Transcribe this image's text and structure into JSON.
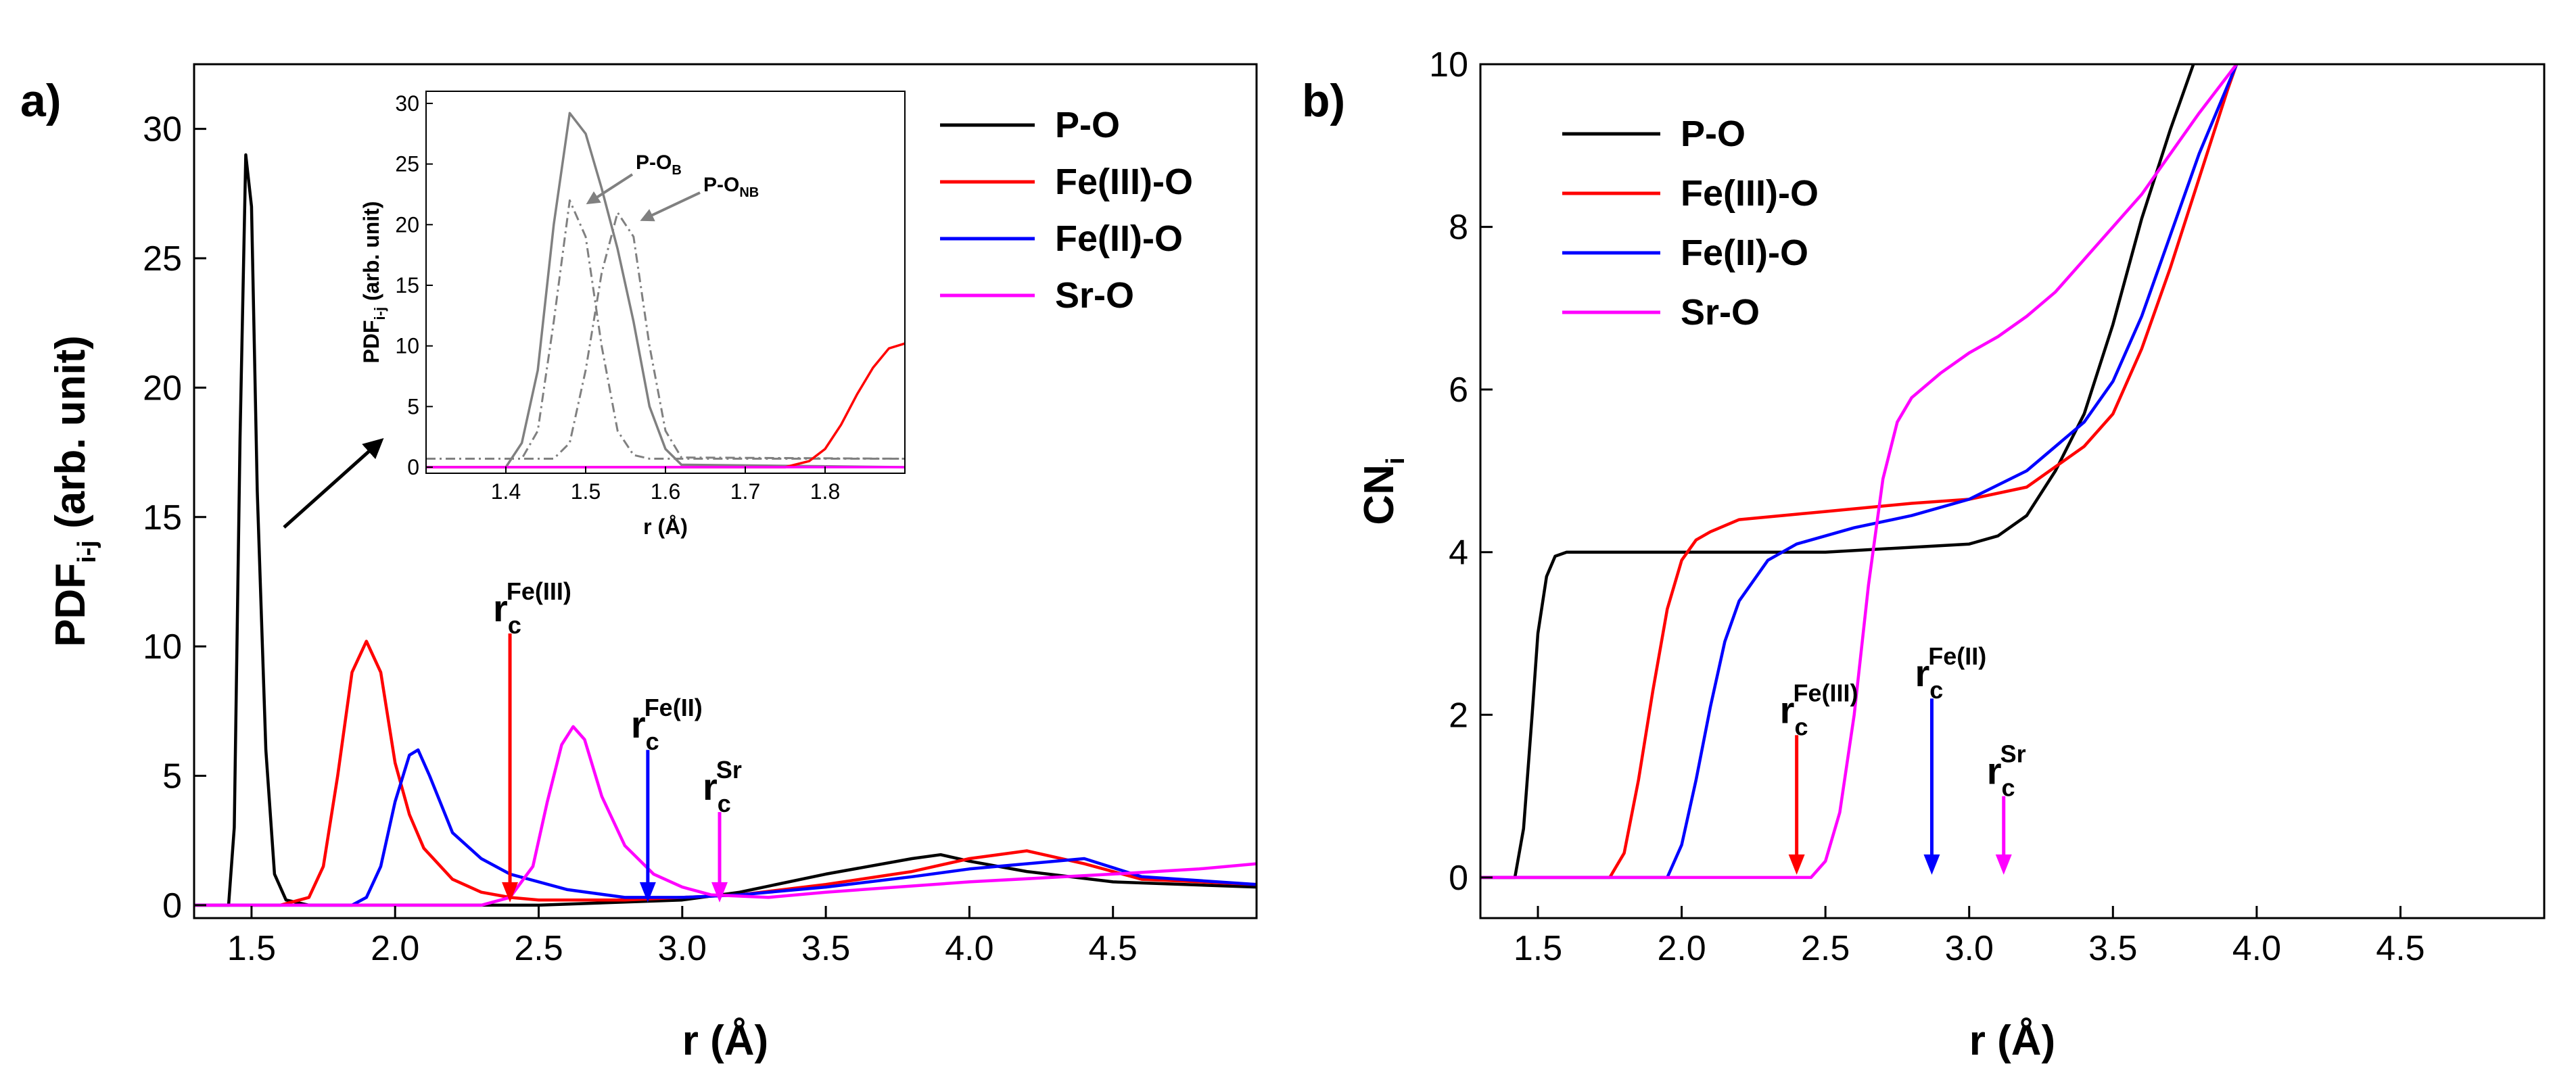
{
  "colors": {
    "P-O": "#000000",
    "Fe(III)-O": "#ff0000",
    "Fe(II)-O": "#0000ff",
    "Sr-O": "#ff00ff",
    "inset_total": "#808080",
    "arrow": "#000000"
  },
  "chart_data": [
    {
      "id": "a",
      "type": "line",
      "panel_label": "a)",
      "xlabel": "r (Å)",
      "ylabel": "PDF",
      "ylabel_sub": "i-j",
      "ylabel_rest": "(arb. unit)",
      "xlim": [
        1.3,
        5.0
      ],
      "ylim": [
        -0.5,
        32.5
      ],
      "xticks": [
        1.5,
        2.0,
        2.5,
        3.0,
        3.5,
        4.0,
        4.5
      ],
      "xtick_labels": [
        "1.5",
        "2.0",
        "2.5",
        "3.0",
        "3.5",
        "4.0",
        "4.5"
      ],
      "yticks": [
        0,
        5,
        10,
        15,
        20,
        25,
        30
      ],
      "ytick_labels": [
        "0",
        "5",
        "10",
        "15",
        "20",
        "25",
        "30"
      ],
      "legend": {
        "position": "top-right",
        "entries": [
          {
            "label": "P-O",
            "series": "P-O"
          },
          {
            "label": "Fe(III)-O",
            "series": "Fe(III)-O"
          },
          {
            "label": "Fe(II)-O",
            "series": "Fe(II)-O"
          },
          {
            "label": "Sr-O",
            "series": "Sr-O"
          }
        ]
      },
      "series": [
        {
          "name": "P-O",
          "x": [
            1.3,
            1.42,
            1.44,
            1.46,
            1.48,
            1.5,
            1.52,
            1.55,
            1.58,
            1.62,
            1.7,
            2.0,
            2.5,
            3.0,
            3.2,
            3.5,
            3.8,
            3.9,
            4.0,
            4.2,
            4.5,
            5.0
          ],
          "y": [
            0,
            0,
            3,
            18,
            29,
            27,
            16,
            6,
            1.2,
            0.2,
            0,
            0,
            0,
            0.2,
            0.5,
            1.2,
            1.8,
            1.95,
            1.7,
            1.3,
            0.9,
            0.7
          ]
        },
        {
          "name": "Fe(III)-O",
          "x": [
            1.3,
            1.6,
            1.7,
            1.75,
            1.8,
            1.85,
            1.9,
            1.95,
            2.0,
            2.05,
            2.1,
            2.2,
            2.3,
            2.4,
            2.5,
            2.8,
            3.0,
            3.2,
            3.5,
            3.8,
            4.0,
            4.2,
            4.4,
            4.6,
            5.0
          ],
          "y": [
            0,
            0,
            0.3,
            1.5,
            5,
            9,
            10.2,
            9,
            5.5,
            3.5,
            2.2,
            1,
            0.5,
            0.3,
            0.2,
            0.2,
            0.3,
            0.4,
            0.8,
            1.3,
            1.8,
            2.1,
            1.6,
            1.0,
            0.8
          ]
        },
        {
          "name": "Fe(II)-O",
          "x": [
            1.3,
            1.85,
            1.9,
            1.95,
            2.0,
            2.05,
            2.08,
            2.12,
            2.2,
            2.3,
            2.4,
            2.6,
            2.8,
            3.0,
            3.2,
            3.5,
            3.8,
            4.0,
            4.2,
            4.4,
            4.6,
            5.0
          ],
          "y": [
            0,
            0,
            0.3,
            1.5,
            4,
            5.8,
            6,
            5,
            2.8,
            1.8,
            1.2,
            0.6,
            0.3,
            0.3,
            0.4,
            0.7,
            1.1,
            1.4,
            1.6,
            1.8,
            1.1,
            0.8
          ]
        },
        {
          "name": "Sr-O",
          "x": [
            1.3,
            2.3,
            2.4,
            2.48,
            2.53,
            2.58,
            2.62,
            2.66,
            2.72,
            2.8,
            2.9,
            3.0,
            3.1,
            3.3,
            3.5,
            4.0,
            4.5,
            4.8,
            5.0
          ],
          "y": [
            0,
            0,
            0.3,
            1.5,
            4,
            6.2,
            6.9,
            6.4,
            4.2,
            2.3,
            1.2,
            0.7,
            0.4,
            0.3,
            0.5,
            0.9,
            1.2,
            1.4,
            1.6
          ]
        }
      ],
      "annotations": [
        {
          "main": "r",
          "sub": "c",
          "sup": "Fe(III)",
          "x": 2.4,
          "series": "Fe(III)-O",
          "arrow_top": 10.5
        },
        {
          "main": "r",
          "sub": "c",
          "sup": "Fe(II)",
          "x": 2.88,
          "series": "Fe(II)-O",
          "arrow_top": 6.0
        },
        {
          "main": "r",
          "sub": "c",
          "sup": "Sr",
          "x": 3.13,
          "series": "Sr-O",
          "arrow_top": 3.6
        }
      ],
      "inset": {
        "xlabel": "r (Å)",
        "ylabel": "PDF",
        "ylabel_sub": "i-j",
        "ylabel_rest": "(arb. unit)",
        "xlim": [
          1.3,
          1.9
        ],
        "ylim": [
          -0.5,
          31
        ],
        "xticks": [
          1.4,
          1.5,
          1.6,
          1.7,
          1.8
        ],
        "xtick_labels": [
          "1.4",
          "1.5",
          "1.6",
          "1.7",
          "1.8"
        ],
        "yticks": [
          0,
          5,
          10,
          15,
          20,
          25,
          30
        ],
        "ytick_labels": [
          "0",
          "5",
          "10",
          "15",
          "20",
          "25",
          "30"
        ],
        "series": [
          {
            "name": "P-O total",
            "style": "solid",
            "color_key": "inset_total",
            "x": [
              1.3,
              1.4,
              1.42,
              1.44,
              1.46,
              1.48,
              1.5,
              1.52,
              1.54,
              1.56,
              1.58,
              1.6,
              1.62,
              1.9
            ],
            "y": [
              0,
              0,
              2,
              8,
              20,
              29.2,
              27.5,
              23,
              18,
              12,
              5,
              1.5,
              0.2,
              0
            ]
          },
          {
            "name": "P-O_B",
            "style": "dashdot",
            "color_key": "inset_total",
            "x": [
              1.3,
              1.42,
              1.44,
              1.46,
              1.48,
              1.5,
              1.52,
              1.54,
              1.56,
              1.58,
              1.9
            ],
            "y": [
              0.7,
              0.7,
              3,
              12,
              22,
              19,
              10,
              3,
              1,
              0.7,
              0.7
            ]
          },
          {
            "name": "P-O_NB",
            "style": "dashdot",
            "color_key": "inset_total",
            "x": [
              1.3,
              1.46,
              1.48,
              1.5,
              1.52,
              1.54,
              1.56,
              1.58,
              1.6,
              1.62,
              1.9
            ],
            "y": [
              0.7,
              0.7,
              2,
              8,
              16,
              21,
              19,
              10,
              3,
              0.8,
              0.7
            ]
          },
          {
            "name": "Fe(III)-O",
            "style": "solid",
            "color_key": "Fe(III)-O",
            "x": [
              1.3,
              1.75,
              1.78,
              1.8,
              1.82,
              1.84,
              1.86,
              1.88,
              1.9
            ],
            "y": [
              0,
              0,
              0.5,
              1.5,
              3.5,
              6,
              8.2,
              9.8,
              10.2
            ]
          },
          {
            "name": "Sr-O",
            "style": "solid",
            "color_key": "Sr-O",
            "x": [
              1.3,
              1.9
            ],
            "y": [
              0,
              0
            ]
          }
        ],
        "labels": [
          {
            "main": "P-O",
            "sub": "B"
          },
          {
            "main": "P-O",
            "sub": "NB"
          }
        ]
      }
    },
    {
      "id": "b",
      "type": "line",
      "panel_label": "b)",
      "xlabel": "r (Å)",
      "ylabel": "CN",
      "ylabel_sub": "i",
      "xlim": [
        1.3,
        5.0
      ],
      "ylim": [
        -0.5,
        10
      ],
      "xticks": [
        1.5,
        2.0,
        2.5,
        3.0,
        3.5,
        4.0,
        4.5
      ],
      "xtick_labels": [
        "1.5",
        "2.0",
        "2.5",
        "3.0",
        "3.5",
        "4.0",
        "4.5"
      ],
      "yticks": [
        0,
        2,
        4,
        6,
        8,
        10
      ],
      "ytick_labels": [
        "0",
        "2",
        "4",
        "6",
        "8",
        "10"
      ],
      "legend": {
        "position": "top-left",
        "entries": [
          {
            "label": "P-O",
            "series": "P-O"
          },
          {
            "label": "Fe(III)-O",
            "series": "Fe(III)-O"
          },
          {
            "label": "Fe(II)-O",
            "series": "Fe(II)-O"
          },
          {
            "label": "Sr-O",
            "series": "Sr-O"
          }
        ]
      },
      "series": [
        {
          "name": "P-O",
          "x": [
            1.3,
            1.42,
            1.45,
            1.48,
            1.5,
            1.53,
            1.56,
            1.6,
            2.0,
            2.5,
            3.0,
            3.1,
            3.2,
            3.3,
            3.4,
            3.5,
            3.6,
            3.7,
            3.78
          ],
          "y": [
            0,
            0,
            0.6,
            2,
            3,
            3.7,
            3.95,
            4,
            4,
            4,
            4.1,
            4.2,
            4.45,
            5,
            5.7,
            6.8,
            8.1,
            9.2,
            10
          ]
        },
        {
          "name": "Fe(III)-O",
          "x": [
            1.3,
            1.75,
            1.8,
            1.85,
            1.9,
            1.95,
            2.0,
            2.05,
            2.1,
            2.2,
            2.5,
            2.8,
            3.0,
            3.2,
            3.4,
            3.5,
            3.6,
            3.7,
            3.8,
            3.9,
            3.93
          ],
          "y": [
            0,
            0,
            0.3,
            1.2,
            2.3,
            3.3,
            3.9,
            4.15,
            4.25,
            4.4,
            4.5,
            4.6,
            4.65,
            4.8,
            5.3,
            5.7,
            6.5,
            7.5,
            8.6,
            9.7,
            10
          ]
        },
        {
          "name": "Fe(II)-O",
          "x": [
            1.3,
            1.95,
            2.0,
            2.05,
            2.1,
            2.15,
            2.2,
            2.3,
            2.4,
            2.6,
            2.8,
            3.0,
            3.2,
            3.4,
            3.5,
            3.6,
            3.7,
            3.8,
            3.93
          ],
          "y": [
            0,
            0,
            0.4,
            1.2,
            2.1,
            2.9,
            3.4,
            3.9,
            4.1,
            4.3,
            4.45,
            4.65,
            5,
            5.6,
            6.1,
            6.9,
            7.9,
            8.9,
            10
          ]
        },
        {
          "name": "Sr-O",
          "x": [
            1.3,
            2.45,
            2.5,
            2.55,
            2.6,
            2.65,
            2.7,
            2.75,
            2.8,
            2.9,
            3.0,
            3.1,
            3.2,
            3.3,
            3.4,
            3.5,
            3.6,
            3.7,
            3.8,
            3.93
          ],
          "y": [
            0,
            0,
            0.2,
            0.8,
            2,
            3.6,
            4.9,
            5.6,
            5.9,
            6.2,
            6.45,
            6.65,
            6.9,
            7.2,
            7.6,
            8,
            8.4,
            8.9,
            9.4,
            10
          ]
        }
      ],
      "annotations": [
        {
          "main": "r",
          "sub": "c",
          "sup": "Fe(III)",
          "x": 2.4,
          "series": "Fe(III)-O",
          "arrow_top": 1.75
        },
        {
          "main": "r",
          "sub": "c",
          "sup": "Fe(II)",
          "x": 2.87,
          "series": "Fe(II)-O",
          "arrow_top": 2.2
        },
        {
          "main": "r",
          "sub": "c",
          "sup": "Sr",
          "x": 3.12,
          "series": "Sr-O",
          "arrow_top": 1.0
        }
      ]
    }
  ]
}
